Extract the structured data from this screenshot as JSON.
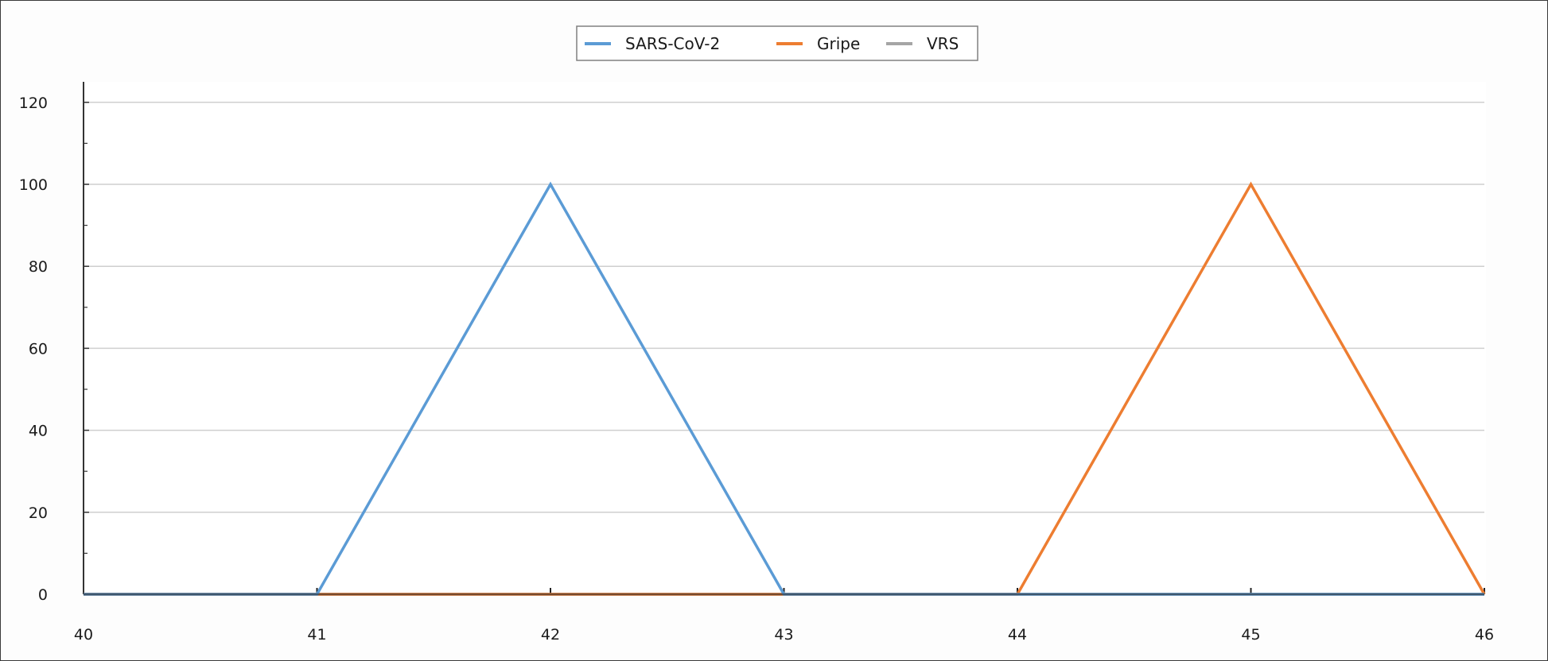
{
  "chart_data": {
    "type": "line",
    "title": "",
    "xlabel": "",
    "ylabel": "",
    "x": [
      40,
      41,
      42,
      43,
      44,
      45,
      46
    ],
    "xlim": [
      40,
      46
    ],
    "ylim": [
      0,
      125
    ],
    "x_ticks": [
      "40",
      "41",
      "42",
      "43",
      "44",
      "45",
      "46"
    ],
    "y_ticks": [
      "0",
      "20",
      "40",
      "60",
      "80",
      "100",
      "120"
    ],
    "grid": "horizontal",
    "legend_position": "top-center",
    "series": [
      {
        "name": "SARS-CoV-2",
        "color": "#5b9bd5",
        "values": [
          0,
          0,
          100,
          0,
          0,
          0,
          0
        ]
      },
      {
        "name": "Gripe",
        "color": "#ed7d31",
        "values": [
          0,
          0,
          0,
          0,
          0,
          100,
          0
        ]
      },
      {
        "name": "VRS",
        "color": "#a5a5a5",
        "values": [
          0,
          0,
          0,
          0,
          0,
          0,
          0
        ]
      }
    ]
  }
}
